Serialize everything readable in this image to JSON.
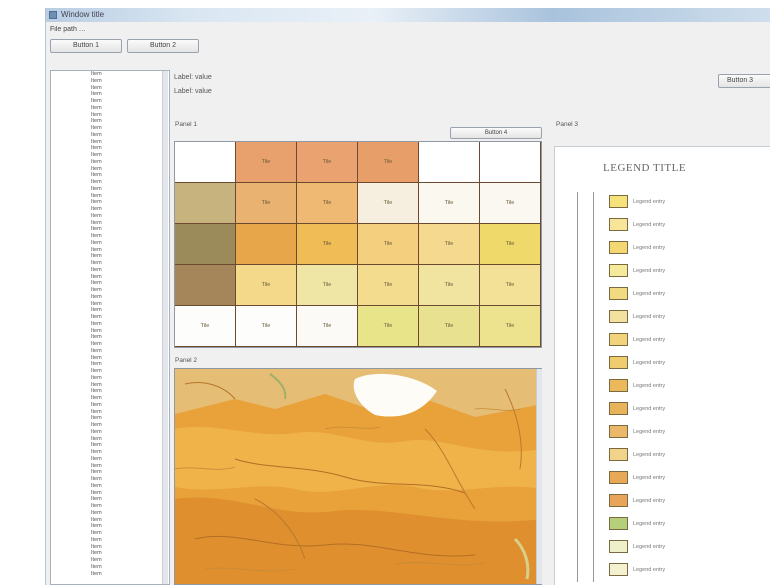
{
  "window": {
    "title": "Window title",
    "path": "File path …"
  },
  "toolbar": {
    "left_button": "Button 1",
    "right_button": "Button 2",
    "open_button": "Button 3"
  },
  "header": {
    "line1": "Label: value",
    "line2": "Label: value"
  },
  "mosaic": {
    "group_label": "Panel 1",
    "select_button": "Button 4",
    "tiles": [
      {
        "label": "",
        "color": "#ffffff"
      },
      {
        "label": "Tile",
        "color": "#e8a06c"
      },
      {
        "label": "Tile",
        "color": "#e9a270"
      },
      {
        "label": "Tile",
        "color": "#e79e68"
      },
      {
        "label": "",
        "color": "#ffffff"
      },
      {
        "label": "",
        "color": "#ffffff"
      },
      {
        "label": "",
        "color": "#c7b37e"
      },
      {
        "label": "Tile",
        "color": "#eab271"
      },
      {
        "label": "Tile",
        "color": "#efb873"
      },
      {
        "label": "Tile",
        "color": "#f6efdf"
      },
      {
        "label": "Tile",
        "color": "#fbf8f0"
      },
      {
        "label": "Tile",
        "color": "#fbf8f1"
      },
      {
        "label": "",
        "color": "#9b8a5a"
      },
      {
        "label": "",
        "color": "#e8a64a"
      },
      {
        "label": "Tile",
        "color": "#f0bc55"
      },
      {
        "label": "Tile",
        "color": "#f3cf7e"
      },
      {
        "label": "Tile",
        "color": "#f4d98e"
      },
      {
        "label": "Tile",
        "color": "#efd96b"
      },
      {
        "label": "",
        "color": "#a4865a"
      },
      {
        "label": "Tile",
        "color": "#f3d989"
      },
      {
        "label": "Tile",
        "color": "#efe6a5"
      },
      {
        "label": "Tile",
        "color": "#f4dc8f"
      },
      {
        "label": "Tile",
        "color": "#f1e3a0"
      },
      {
        "label": "Tile",
        "color": "#f3e197"
      },
      {
        "label": "Tile",
        "color": "#fdfdfb"
      },
      {
        "label": "Tile",
        "color": "#fdfdfb"
      },
      {
        "label": "Tile",
        "color": "#fbfaf6"
      },
      {
        "label": "Tile",
        "color": "#e7e48a"
      },
      {
        "label": "Tile",
        "color": "#e8e190"
      },
      {
        "label": "Tile",
        "color": "#ede38e"
      }
    ]
  },
  "preview": {
    "group_label": "Panel 2"
  },
  "legend": {
    "group_label": "Panel 3",
    "title": "LEGEND TITLE",
    "items": [
      {
        "code": "",
        "color": "#f6e27a",
        "text": "Legend entry"
      },
      {
        "code": "",
        "color": "#f7e59a",
        "text": "Legend entry"
      },
      {
        "code": "",
        "color": "#f2d772",
        "text": "Legend entry"
      },
      {
        "code": "",
        "color": "#f5ea9c",
        "text": "Legend entry"
      },
      {
        "code": "",
        "color": "#f2da80",
        "text": "Legend entry"
      },
      {
        "code": "",
        "color": "#f3e1a0",
        "text": "Legend entry"
      },
      {
        "code": "",
        "color": "#f0d37a",
        "text": "Legend entry"
      },
      {
        "code": "",
        "color": "#efcd6e",
        "text": "Legend entry"
      },
      {
        "code": "",
        "color": "#ecb85c",
        "text": "Legend entry"
      },
      {
        "code": "",
        "color": "#e9b35a",
        "text": "Legend entry"
      },
      {
        "code": "",
        "color": "#ebb86a",
        "text": "Legend entry"
      },
      {
        "code": "",
        "color": "#f2d38a",
        "text": "Legend entry"
      },
      {
        "code": "",
        "color": "#e7a955",
        "text": "Legend entry"
      },
      {
        "code": "",
        "color": "#e8a458",
        "text": "Legend entry"
      },
      {
        "code": "",
        "color": "#b6cf7a",
        "text": "Legend entry"
      },
      {
        "code": "",
        "color": "#eef0ca",
        "text": "Legend entry"
      },
      {
        "code": "",
        "color": "#f3f1d0",
        "text": "Legend entry"
      }
    ]
  },
  "sheets": [
    "Item",
    "Item",
    "Item",
    "Item",
    "Item",
    "Item",
    "Item",
    "Item",
    "Item",
    "Item",
    "Item",
    "Item",
    "Item",
    "Item",
    "Item",
    "Item",
    "Item",
    "Item",
    "Item",
    "Item",
    "Item",
    "Item",
    "Item",
    "Item",
    "Item",
    "Item",
    "Item",
    "Item",
    "Item",
    "Item",
    "Item",
    "Item",
    "Item",
    "Item",
    "Item",
    "Item",
    "Item",
    "Item",
    "Item",
    "Item",
    "Item",
    "Item",
    "Item",
    "Item",
    "Item",
    "Item",
    "Item",
    "Item",
    "Item",
    "Item",
    "Item",
    "Item",
    "Item",
    "Item",
    "Item",
    "Item",
    "Item",
    "Item",
    "Item",
    "Item",
    "Item",
    "Item",
    "Item",
    "Item",
    "Item",
    "Item",
    "Item",
    "Item",
    "Item",
    "Item",
    "Item",
    "Item",
    "Item",
    "Item",
    "Item"
  ]
}
